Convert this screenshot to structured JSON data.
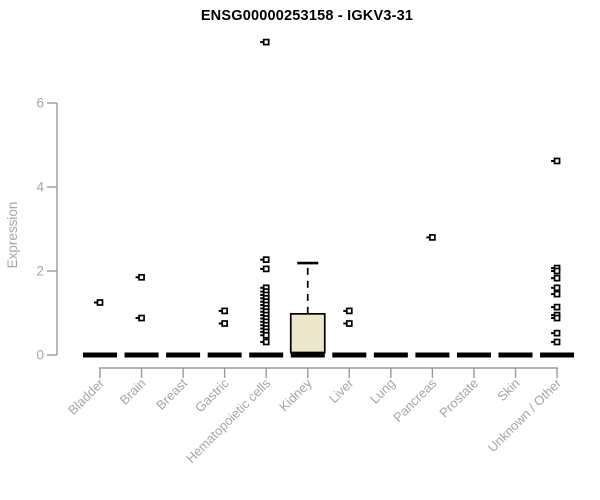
{
  "chart_data": {
    "type": "boxplot",
    "title": "ENSG00000253158 - IGKV3-31",
    "ylabel": "Expression",
    "xlabel": "",
    "ylim": [
      0,
      6
    ],
    "yticks": [
      0,
      2,
      4,
      6
    ],
    "grid": false,
    "legend": "none",
    "categories": [
      "Bladder",
      "Brain",
      "Breast",
      "Gastric",
      "Hematopoietic cells",
      "Kidney",
      "Liver",
      "Lung",
      "Pancreas",
      "Prostate",
      "Skin",
      "Unknown / Other"
    ],
    "boxes": [
      {
        "category": "Bladder",
        "median": 0,
        "q1": 0,
        "q3": 0,
        "whisker_low": 0,
        "whisker_high": 0,
        "outliers": [
          1.25
        ]
      },
      {
        "category": "Brain",
        "median": 0,
        "q1": 0,
        "q3": 0,
        "whisker_low": 0,
        "whisker_high": 0,
        "outliers": [
          1.85,
          0.88
        ]
      },
      {
        "category": "Breast",
        "median": 0,
        "q1": 0,
        "q3": 0,
        "whisker_low": 0,
        "whisker_high": 0,
        "outliers": []
      },
      {
        "category": "Gastric",
        "median": 0,
        "q1": 0,
        "q3": 0,
        "whisker_low": 0,
        "whisker_high": 0,
        "outliers": [
          1.05,
          0.75
        ]
      },
      {
        "category": "Hematopoietic cells",
        "median": 0,
        "q1": 0,
        "q3": 0,
        "whisker_low": 0,
        "whisker_high": 0,
        "outliers": [
          7.45,
          2.27,
          2.05,
          1.6,
          1.51,
          1.43,
          1.35,
          1.27,
          1.19,
          1.11,
          1.03,
          0.95,
          0.87,
          0.79,
          0.71,
          0.63,
          0.55,
          0.47,
          0.31
        ]
      },
      {
        "category": "Kidney",
        "median": 0,
        "q1": 0,
        "q3": 0.98,
        "whisker_low": 0,
        "whisker_high": 2.19,
        "outliers": []
      },
      {
        "category": "Liver",
        "median": 0,
        "q1": 0,
        "q3": 0,
        "whisker_low": 0,
        "whisker_high": 0,
        "outliers": [
          1.05,
          0.75
        ]
      },
      {
        "category": "Lung",
        "median": 0,
        "q1": 0,
        "q3": 0,
        "whisker_low": 0,
        "whisker_high": 0,
        "outliers": []
      },
      {
        "category": "Pancreas",
        "median": 0,
        "q1": 0,
        "q3": 0,
        "whisker_low": 0,
        "whisker_high": 0,
        "outliers": [
          2.8
        ]
      },
      {
        "category": "Prostate",
        "median": 0,
        "q1": 0,
        "q3": 0,
        "whisker_low": 0,
        "whisker_high": 0,
        "outliers": []
      },
      {
        "category": "Skin",
        "median": 0,
        "q1": 0,
        "q3": 0,
        "whisker_low": 0,
        "whisker_high": 0,
        "outliers": []
      },
      {
        "category": "Unknown / Other",
        "median": 0,
        "q1": 0,
        "q3": 0,
        "whisker_low": 0,
        "whisker_high": 0,
        "outliers": [
          4.62,
          2.07,
          2.0,
          1.83,
          1.6,
          1.45,
          1.14,
          0.95,
          0.88,
          0.52,
          0.31
        ]
      }
    ],
    "colors": {
      "box_fill": "#ece7cb",
      "box_stroke": "#000000",
      "zero_bar": "#000000",
      "outlier": "#000000",
      "axis": "#9b9b9b",
      "tick_label": "#a6a6a6",
      "title": "#000000"
    }
  }
}
